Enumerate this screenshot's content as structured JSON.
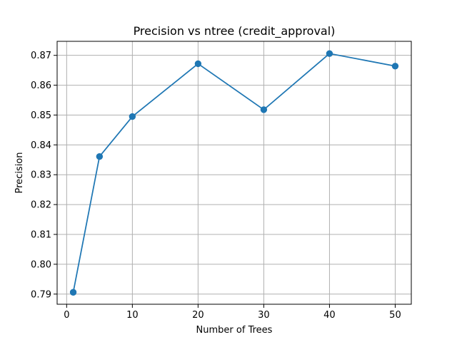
{
  "chart_data": {
    "type": "line",
    "title": "Precision vs ntree (credit_approval)",
    "xlabel": "Number of Trees",
    "ylabel": "Precision",
    "x": [
      1,
      5,
      10,
      20,
      30,
      40,
      50
    ],
    "series": [
      {
        "values": [
          0.7906,
          0.8361,
          0.8495,
          0.8672,
          0.8518,
          0.8706,
          0.8664
        ],
        "color": "#1f77b4",
        "marker": "circle"
      }
    ],
    "xlim": [
      -1.45,
      52.45
    ],
    "ylim": [
      0.7866,
      0.8747
    ],
    "x_ticks": [
      0,
      10,
      20,
      30,
      40,
      50
    ],
    "x_tick_labels": [
      "0",
      "10",
      "20",
      "30",
      "40",
      "50"
    ],
    "y_ticks": [
      0.79,
      0.8,
      0.81,
      0.82,
      0.83,
      0.84,
      0.85,
      0.86,
      0.87
    ],
    "y_tick_labels": [
      "0.79",
      "0.80",
      "0.81",
      "0.82",
      "0.83",
      "0.84",
      "0.85",
      "0.86",
      "0.87"
    ],
    "grid": true
  }
}
